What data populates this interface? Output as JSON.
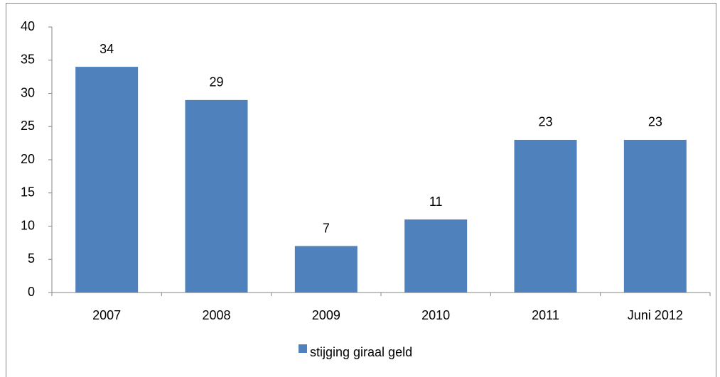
{
  "chart_data": {
    "type": "bar",
    "categories": [
      "2007",
      "2008",
      "2009",
      "2010",
      "2011",
      "Juni 2012"
    ],
    "series": [
      {
        "name": "stijging giraal geld",
        "color": "#4f81bd",
        "values": [
          34,
          29,
          7,
          11,
          23,
          23
        ]
      }
    ],
    "ylim": [
      0,
      40
    ],
    "yticks": [
      0,
      5,
      10,
      15,
      20,
      25,
      30,
      35,
      40
    ],
    "grid": false,
    "legend": "bottom"
  }
}
